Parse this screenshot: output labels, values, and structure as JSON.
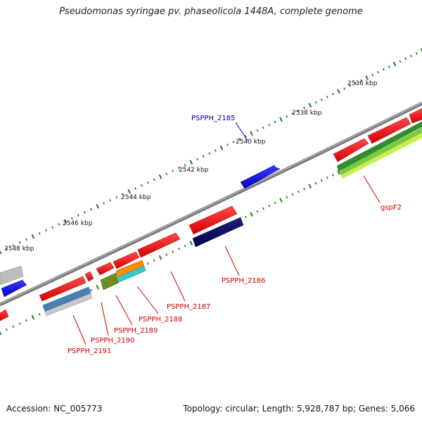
{
  "title": "Pseudomonas syringae pv. phaseolicola 1448A, complete genome",
  "footer": {
    "accession": "Accession: NC_005773",
    "summary": "Topology: circular; Length: 5,928,787 bp; Genes: 5,066"
  },
  "colors": {
    "backbone": "#8a8a8a",
    "tick": "#1a7a1a",
    "label_red": "#cc0000",
    "label_blue": "#000099"
  },
  "scale_labels": [
    "2536 kbp",
    "2538 kbp",
    "2540 kbp",
    "2542 kbp",
    "2544 kbp",
    "2546 kbp",
    "2548 kbp"
  ],
  "gene_labels": [
    {
      "text": "PSPPH_2185",
      "color": "blue"
    },
    {
      "text": "gspF2",
      "color": "red"
    },
    {
      "text": "PSPPH_2186",
      "color": "red"
    },
    {
      "text": "PSPPH_2187",
      "color": "red"
    },
    {
      "text": "PSPPH_2188",
      "color": "red"
    },
    {
      "text": "PSPPH_2189",
      "color": "red"
    },
    {
      "text": "PSPPH_2190",
      "color": "red"
    },
    {
      "text": "PSPPH_2191",
      "color": "red"
    }
  ]
}
